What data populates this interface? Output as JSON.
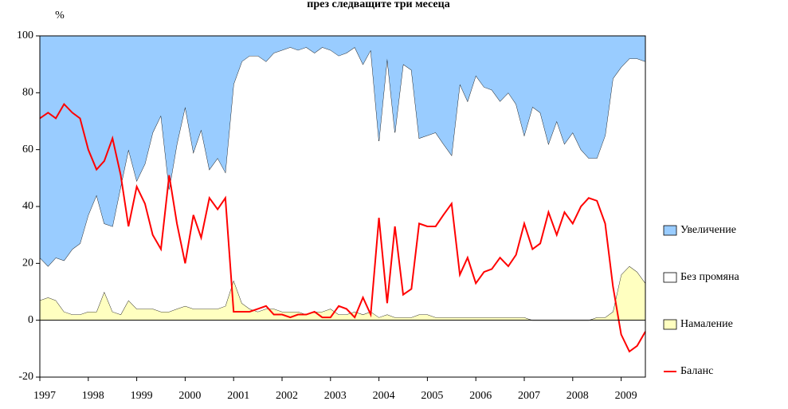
{
  "chart_data": {
    "type": "area",
    "title": "през следващите три месеца",
    "y_label": "%",
    "x": [
      1997,
      1997.17,
      1997.33,
      1997.5,
      1997.67,
      1997.83,
      1998,
      1998.17,
      1998.33,
      1998.5,
      1998.67,
      1998.83,
      1999,
      1999.17,
      1999.33,
      1999.5,
      1999.67,
      1999.83,
      2000,
      2000.17,
      2000.33,
      2000.5,
      2000.67,
      2000.83,
      2001,
      2001.17,
      2001.33,
      2001.5,
      2001.67,
      2001.83,
      2002,
      2002.17,
      2002.33,
      2002.5,
      2002.67,
      2002.83,
      2003,
      2003.17,
      2003.33,
      2003.5,
      2003.67,
      2003.83,
      2004,
      2004.17,
      2004.33,
      2004.5,
      2004.67,
      2004.83,
      2005,
      2005.17,
      2005.33,
      2005.5,
      2005.67,
      2005.83,
      2006,
      2006.17,
      2006.33,
      2006.5,
      2006.67,
      2006.83,
      2007,
      2007.17,
      2007.33,
      2007.5,
      2007.67,
      2007.83,
      2008,
      2008.17,
      2008.33,
      2008.5,
      2008.67,
      2008.83,
      2009,
      2009.17,
      2009.33,
      2009.5
    ],
    "xlim": [
      1997,
      2009.5
    ],
    "xticks": [
      1997,
      1998,
      1999,
      2000,
      2001,
      2002,
      2003,
      2004,
      2005,
      2006,
      2007,
      2008,
      2009
    ],
    "ylim": [
      -20,
      100
    ],
    "yticks": [
      -20,
      0,
      20,
      40,
      60,
      80,
      100
    ],
    "legend": "right",
    "series": [
      {
        "name": "Увеличение",
        "type": "area",
        "color": "#99ccff",
        "values": [
          78,
          81,
          78,
          79,
          75,
          73,
          63,
          56,
          66,
          67,
          53,
          40,
          51,
          45,
          34,
          28,
          54,
          38,
          25,
          41,
          33,
          47,
          43,
          48,
          17,
          9,
          7,
          7,
          9,
          6,
          5,
          4,
          5,
          4,
          6,
          4,
          5,
          7,
          6,
          4,
          10,
          5,
          37,
          8,
          34,
          10,
          12,
          36,
          35,
          34,
          38,
          42,
          17,
          23,
          14,
          18,
          19,
          23,
          20,
          24,
          35,
          25,
          27,
          38,
          30,
          38,
          34,
          40,
          43,
          43,
          35,
          15,
          11,
          8,
          8,
          9
        ]
      },
      {
        "name": "Без промяна",
        "type": "area",
        "color": "#ffffff",
        "values": [
          15,
          11,
          15,
          18,
          23,
          25,
          34,
          41,
          24,
          30,
          45,
          53,
          45,
          51,
          62,
          69,
          43,
          58,
          70,
          55,
          63,
          49,
          53,
          47,
          69,
          85,
          89,
          90,
          87,
          90,
          92,
          93,
          92,
          94,
          91,
          93,
          91,
          91,
          92,
          93,
          88,
          92,
          62,
          90,
          65,
          89,
          87,
          62,
          63,
          65,
          61,
          57,
          82,
          76,
          85,
          81,
          80,
          76,
          79,
          75,
          64,
          75,
          73,
          62,
          70,
          62,
          66,
          60,
          57,
          56,
          64,
          82,
          73,
          73,
          75,
          78
        ]
      },
      {
        "name": "Намаление",
        "type": "area",
        "color": "#ffffc0",
        "values": [
          7,
          8,
          7,
          3,
          2,
          2,
          3,
          3,
          10,
          3,
          2,
          7,
          4,
          4,
          4,
          3,
          3,
          4,
          5,
          4,
          4,
          4,
          4,
          5,
          14,
          6,
          4,
          3,
          4,
          4,
          3,
          3,
          3,
          2,
          3,
          3,
          4,
          2,
          2,
          3,
          2,
          3,
          1,
          2,
          1,
          1,
          1,
          2,
          2,
          1,
          1,
          1,
          1,
          1,
          1,
          1,
          1,
          1,
          1,
          1,
          1,
          0,
          0,
          0,
          0,
          0,
          0,
          0,
          0,
          1,
          1,
          3,
          16,
          19,
          17,
          13
        ]
      },
      {
        "name": "Баланс",
        "type": "line",
        "color": "#ff0000",
        "values": [
          71,
          73,
          71,
          76,
          73,
          71,
          60,
          53,
          56,
          64,
          51,
          33,
          47,
          41,
          30,
          25,
          51,
          34,
          20,
          37,
          29,
          43,
          39,
          43,
          3,
          3,
          3,
          4,
          5,
          2,
          2,
          1,
          2,
          2,
          3,
          1,
          1,
          5,
          4,
          1,
          8,
          2,
          36,
          6,
          33,
          9,
          11,
          34,
          33,
          33,
          37,
          41,
          16,
          22,
          13,
          17,
          18,
          22,
          19,
          23,
          34,
          25,
          27,
          38,
          30,
          38,
          34,
          40,
          43,
          42,
          34,
          12,
          -5,
          -11,
          -9,
          -4
        ]
      }
    ]
  }
}
